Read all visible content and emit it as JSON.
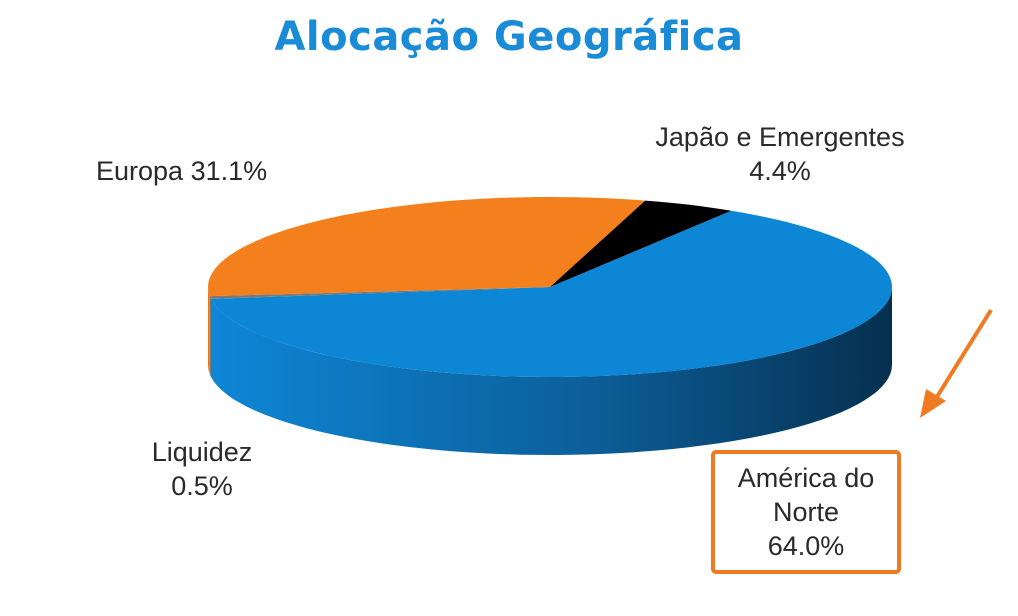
{
  "colors": {
    "title": "#1a8bd6",
    "america": "#0e86d6",
    "america_side_dark": "#06304f",
    "europa": "#f47f1d",
    "europa_side": "#e8781a",
    "japao": "#000000",
    "liquidez": "#7a7a7a",
    "highlight_box": "#f07a22",
    "arrow": "#f07a22"
  },
  "chart_data": {
    "type": "pie",
    "title": "Alocação Geográfica",
    "slices": [
      {
        "name": "América do Norte",
        "value": 64.0
      },
      {
        "name": "Liquidez",
        "value": 0.5
      },
      {
        "name": "Europa",
        "value": 31.1
      },
      {
        "name": "Japão e Emergentes",
        "value": 4.4
      }
    ],
    "labels": {
      "america": [
        "América do",
        "Norte",
        "64.0%"
      ],
      "europa": "Europa  31.1%",
      "japao": [
        "Japão  e Emergentes",
        "4.4%"
      ],
      "liquidez": [
        "Liquidez",
        "0.5%"
      ]
    },
    "highlight": "América do Norte"
  }
}
